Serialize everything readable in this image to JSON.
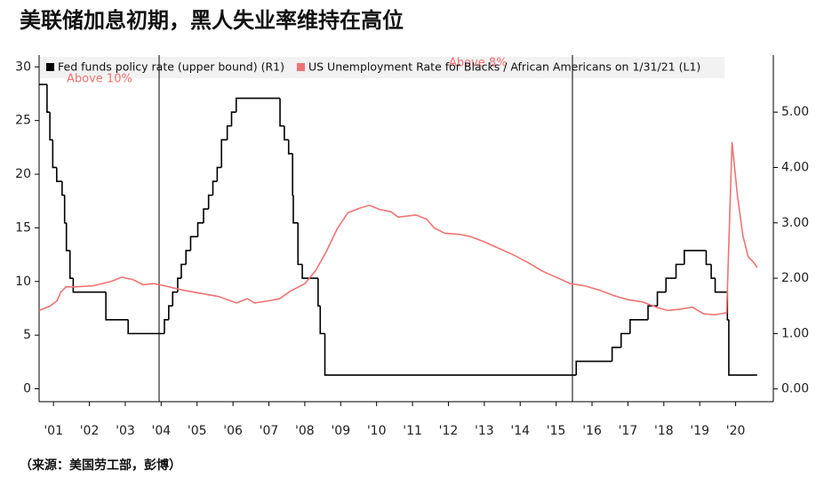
{
  "chart_data": {
    "type": "line",
    "title": "美联储加息初期，黑人失业率维持在高位",
    "source": "（来源：美国劳工部，彭博）",
    "annotations": [
      "Above 10%",
      "Above 8%"
    ],
    "legend": "top",
    "xlim": [
      2001.0,
      2021.45
    ],
    "xticks": [
      {
        "value": 2001.4,
        "label": "'01"
      },
      {
        "value": 2002.4,
        "label": "'02"
      },
      {
        "value": 2003.4,
        "label": "'03"
      },
      {
        "value": 2004.4,
        "label": "'04"
      },
      {
        "value": 2005.4,
        "label": "'05"
      },
      {
        "value": 2006.4,
        "label": "'06"
      },
      {
        "value": 2007.4,
        "label": "'07"
      },
      {
        "value": 2008.4,
        "label": "'08"
      },
      {
        "value": 2009.4,
        "label": "'09"
      },
      {
        "value": 2010.4,
        "label": "'10"
      },
      {
        "value": 2011.4,
        "label": "'11"
      },
      {
        "value": 2012.4,
        "label": "'12"
      },
      {
        "value": 2013.4,
        "label": "'13"
      },
      {
        "value": 2014.4,
        "label": "'14"
      },
      {
        "value": 2015.4,
        "label": "'15"
      },
      {
        "value": 2016.4,
        "label": "'16"
      },
      {
        "value": 2017.4,
        "label": "'17"
      },
      {
        "value": 2018.4,
        "label": "'18"
      },
      {
        "value": 2019.4,
        "label": "'19"
      },
      {
        "value": 2020.4,
        "label": "'20"
      }
    ],
    "ylim": [
      -1.2,
      31.1
    ],
    "yticks": [
      0,
      5,
      10,
      15,
      20,
      25,
      30
    ],
    "y2lim": [
      -0.23,
      6.03
    ],
    "y2ticks": [
      {
        "value": 0,
        "label": "0.00"
      },
      {
        "value": 1,
        "label": "1.00"
      },
      {
        "value": 2,
        "label": "2.00"
      },
      {
        "value": 3,
        "label": "3.00"
      },
      {
        "value": 4,
        "label": "4.00"
      },
      {
        "value": 5,
        "label": "5.00"
      }
    ],
    "series": [
      {
        "name": "Fed funds policy rate (upper bound) (R1)",
        "color": "#000000",
        "axis": "y2",
        "step": true,
        "x": [
          2001.0,
          2001.22,
          2001.3,
          2001.38,
          2001.49,
          2001.64,
          2001.71,
          2001.76,
          2001.86,
          2001.95,
          2002.86,
          2003.48,
          2004.49,
          2004.61,
          2004.72,
          2004.86,
          2004.96,
          2005.09,
          2005.22,
          2005.42,
          2005.58,
          2005.72,
          2005.84,
          2005.96,
          2006.08,
          2006.24,
          2006.36,
          2006.49,
          2007.71,
          2007.83,
          2007.95,
          2008.06,
          2008.08,
          2008.21,
          2008.33,
          2008.77,
          2008.83,
          2008.96,
          2015.96,
          2016.96,
          2017.21,
          2017.46,
          2017.96,
          2018.22,
          2018.46,
          2018.74,
          2018.97,
          2019.58,
          2019.72,
          2019.83,
          2020.17,
          2020.21,
          2021.0
        ],
        "values": [
          5.5,
          5.0,
          4.5,
          4.0,
          3.75,
          3.5,
          3.0,
          2.5,
          2.0,
          1.75,
          1.25,
          1.0,
          1.25,
          1.5,
          1.75,
          2.0,
          2.25,
          2.5,
          2.75,
          3.0,
          3.25,
          3.5,
          3.75,
          4.0,
          4.5,
          4.75,
          5.0,
          5.25,
          4.75,
          4.5,
          4.25,
          3.5,
          3.0,
          2.25,
          2.0,
          1.5,
          1.0,
          0.25,
          0.5,
          0.75,
          1.0,
          1.25,
          1.5,
          1.75,
          2.0,
          2.25,
          2.5,
          2.25,
          2.0,
          1.75,
          1.25,
          0.25,
          0.25
        ]
      },
      {
        "name": "US Unemployment Rate for Blacks / African Americans on 1/31/21 (L1)",
        "color": "#f07373",
        "axis": "y",
        "x": [
          2001.0,
          2001.3,
          2001.5,
          2001.6,
          2001.75,
          2002.0,
          2002.5,
          2003.0,
          2003.3,
          2003.6,
          2003.9,
          2004.2,
          2004.5,
          2005.0,
          2005.5,
          2006.0,
          2006.5,
          2006.8,
          2007.0,
          2007.4,
          2007.7,
          2008.0,
          2008.4,
          2008.7,
          2009.0,
          2009.3,
          2009.6,
          2009.9,
          2010.2,
          2010.5,
          2010.8,
          2011.0,
          2011.5,
          2011.8,
          2012.0,
          2012.3,
          2012.7,
          2013.0,
          2013.4,
          2013.8,
          2014.2,
          2014.6,
          2015.0,
          2015.4,
          2015.8,
          2016.2,
          2016.6,
          2017.0,
          2017.4,
          2017.8,
          2018.2,
          2018.5,
          2018.8,
          2019.2,
          2019.5,
          2019.8,
          2020.0,
          2020.15,
          2020.3,
          2020.45,
          2020.6,
          2020.75,
          2020.9,
          2021.0
        ],
        "values": [
          7.3,
          7.7,
          8.2,
          9.0,
          9.5,
          9.5,
          9.6,
          10.0,
          10.4,
          10.2,
          9.7,
          9.8,
          9.6,
          9.2,
          8.9,
          8.6,
          8.0,
          8.4,
          8.0,
          8.2,
          8.4,
          9.1,
          9.8,
          11.0,
          12.8,
          14.9,
          16.4,
          16.8,
          17.1,
          16.7,
          16.5,
          16.0,
          16.2,
          15.8,
          15.0,
          14.5,
          14.4,
          14.2,
          13.7,
          13.1,
          12.5,
          11.8,
          11.0,
          10.4,
          9.8,
          9.6,
          9.2,
          8.7,
          8.3,
          8.1,
          7.6,
          7.3,
          7.4,
          7.6,
          7.0,
          6.9,
          7.0,
          7.1,
          23.0,
          18.0,
          14.3,
          12.3,
          11.8,
          11.3
        ]
      }
    ]
  }
}
